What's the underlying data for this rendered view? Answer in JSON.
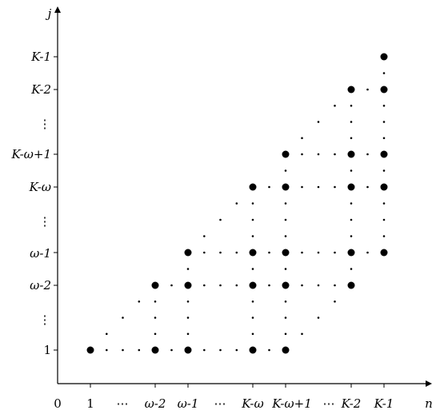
{
  "axes": {
    "origin_label": "0",
    "x_axis_label": "n",
    "y_axis_label": "j"
  },
  "x_labels": [
    "1",
    "⋯",
    "ω-2",
    "ω-1",
    "⋯",
    "K-ω",
    "K-ω+1",
    "⋯",
    "K-2",
    "K-1"
  ],
  "y_labels": [
    "K-1",
    "K-2",
    "⋮",
    "K-ω+1",
    "K-ω",
    "⋮",
    "ω-1",
    "ω-2",
    "⋮",
    "1"
  ],
  "columns": [
    "1",
    "ω-2",
    "ω-1",
    "K-ω",
    "K-ω+1",
    "K-2",
    "K-1"
  ],
  "rows": [
    "1",
    "ω-2",
    "ω-1",
    "K-ω",
    "K-ω+1",
    "K-2",
    "K-1"
  ],
  "points": [
    {
      "n": "1",
      "j": "1"
    },
    {
      "n": "ω-2",
      "j": "1"
    },
    {
      "n": "ω-2",
      "j": "ω-2"
    },
    {
      "n": "ω-1",
      "j": "1"
    },
    {
      "n": "ω-1",
      "j": "ω-2"
    },
    {
      "n": "ω-1",
      "j": "ω-1"
    },
    {
      "n": "K-ω",
      "j": "1"
    },
    {
      "n": "K-ω",
      "j": "ω-2"
    },
    {
      "n": "K-ω",
      "j": "ω-1"
    },
    {
      "n": "K-ω",
      "j": "K-ω"
    },
    {
      "n": "K-ω+1",
      "j": "1"
    },
    {
      "n": "K-ω+1",
      "j": "ω-2"
    },
    {
      "n": "K-ω+1",
      "j": "ω-1"
    },
    {
      "n": "K-ω+1",
      "j": "K-ω"
    },
    {
      "n": "K-ω+1",
      "j": "K-ω+1"
    },
    {
      "n": "K-2",
      "j": "ω-2"
    },
    {
      "n": "K-2",
      "j": "ω-1"
    },
    {
      "n": "K-2",
      "j": "K-ω"
    },
    {
      "n": "K-2",
      "j": "K-ω+1"
    },
    {
      "n": "K-2",
      "j": "K-2"
    },
    {
      "n": "K-1",
      "j": "ω-1"
    },
    {
      "n": "K-1",
      "j": "K-ω"
    },
    {
      "n": "K-1",
      "j": "K-ω+1"
    },
    {
      "n": "K-1",
      "j": "K-2"
    },
    {
      "n": "K-1",
      "j": "K-1"
    }
  ]
}
